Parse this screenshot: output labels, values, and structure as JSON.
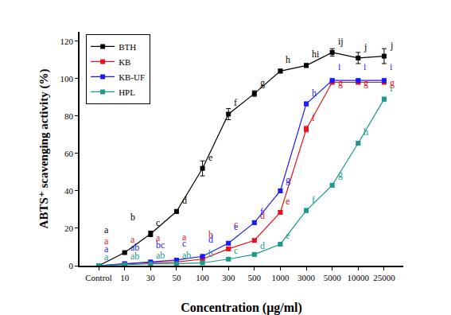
{
  "chart_data": {
    "type": "line",
    "x_label": "Concentration (μg/ml)",
    "y_label": "ABTS⁺ scavenging activity (%)",
    "categories": [
      "Control",
      "10",
      "30",
      "50",
      "100",
      "300",
      "500",
      "1000",
      "3000",
      "5000",
      "10000",
      "25000"
    ],
    "series": [
      {
        "name": "BTH",
        "color": "#000000",
        "marker": "square",
        "values": [
          0,
          7,
          17,
          29,
          52,
          81,
          92,
          104,
          107,
          114,
          111,
          112
        ],
        "errors": [
          0,
          0.5,
          1.5,
          1,
          4,
          3,
          1.5,
          1,
          1,
          2,
          3,
          4
        ],
        "letters": [
          "a",
          "b",
          "c",
          "d",
          "e",
          "f",
          "g",
          "h",
          "hi",
          "ij",
          "j",
          "j"
        ]
      },
      {
        "name": "KB",
        "color": "#e8111a",
        "marker": "square",
        "values": [
          0,
          1,
          1.5,
          2,
          3.5,
          9,
          13.5,
          28.5,
          73,
          98,
          98,
          98
        ],
        "errors": [
          0,
          0.3,
          0.3,
          0.3,
          0.5,
          0.8,
          0.8,
          1,
          1.5,
          0.8,
          0.8,
          0.8
        ],
        "letters": [
          "a",
          "a",
          "a",
          "a",
          "b",
          "c",
          "d",
          "e",
          "f",
          "g",
          "g",
          "g"
        ]
      },
      {
        "name": "KB-UF",
        "color": "#1a1aff",
        "marker": "square",
        "values": [
          0,
          1,
          2,
          3,
          5,
          12,
          23,
          40,
          86.5,
          99,
          99,
          99
        ],
        "errors": [
          0,
          0.3,
          0.3,
          0.3,
          0.5,
          0.8,
          1,
          1,
          1,
          0.8,
          0.8,
          0.8
        ],
        "letters": [
          "a",
          "ab",
          "bc",
          "c",
          "d",
          "e",
          "f",
          "g",
          "h",
          "i",
          "i",
          "i"
        ]
      },
      {
        "name": "HPL",
        "color": "#1a9a8a",
        "marker": "square",
        "values": [
          0,
          0.5,
          1,
          1,
          1.5,
          3.5,
          6,
          11.5,
          29.5,
          43,
          65.5,
          89
        ],
        "errors": [
          0,
          0.2,
          0.2,
          0.2,
          0.3,
          0.5,
          0.5,
          0.8,
          1,
          1,
          1,
          1
        ],
        "letters": [
          "a",
          "ab",
          "ab",
          "ab",
          "b",
          "c",
          "d",
          "e",
          "f",
          "g",
          "h",
          "i"
        ]
      }
    ],
    "ylim": [
      0,
      125
    ],
    "yticks": [
      0,
      20,
      40,
      60,
      80,
      100,
      120
    ],
    "grid": false,
    "legend": "upper left"
  }
}
